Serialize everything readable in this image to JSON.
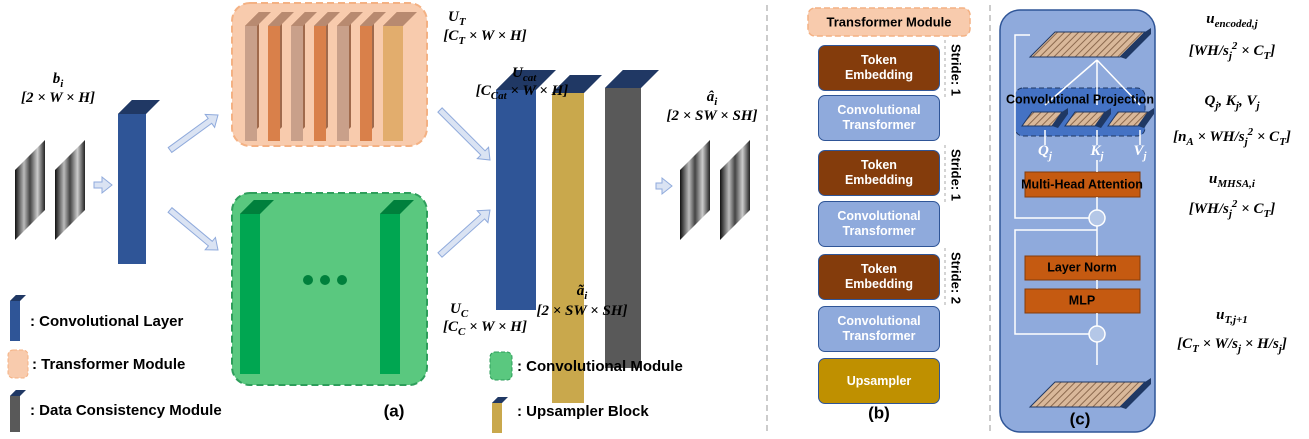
{
  "panel_a": {
    "input": {
      "label": [
        {
          "t": "b"
        },
        {
          "sub": "i"
        }
      ],
      "dims": [
        {
          "t": "[2 × W × H]"
        }
      ]
    },
    "transformer_output": {
      "label": [
        {
          "t": "U"
        },
        {
          "sub": "T"
        }
      ],
      "dims": [
        {
          "t": "[C"
        },
        {
          "sub": "T"
        },
        {
          "t": " × W × H]"
        }
      ]
    },
    "concat": {
      "label": [
        {
          "t": "U"
        },
        {
          "sub": "cat"
        }
      ],
      "dims": [
        {
          "t": "[C"
        },
        {
          "sub": "Cat"
        },
        {
          "t": " × W × H]"
        }
      ]
    },
    "conv_output": {
      "label": [
        {
          "t": "U"
        },
        {
          "sub": "C"
        }
      ],
      "dims": [
        {
          "t": "[C"
        },
        {
          "sub": "C"
        },
        {
          "t": " × W × H]"
        }
      ]
    },
    "upsampled": {
      "label": [
        {
          "t": "ã"
        },
        {
          "sub": "i"
        }
      ],
      "dims": [
        {
          "t": "[2 × SW × SH]"
        }
      ]
    },
    "output": {
      "label": [
        {
          "t": "â"
        },
        {
          "sub": "i"
        }
      ],
      "dims": [
        {
          "t": "[2 × SW × SH]"
        }
      ]
    },
    "legend": [
      ": Convolutional Layer",
      ": Transformer Module",
      ": Data Consistency Module",
      ": Convolutional Module",
      ": Upsampler Block"
    ],
    "caption": "(a)"
  },
  "panel_b": {
    "header": "Transformer Module",
    "blocks": [
      "Token Embedding",
      "Convolutional Transformer",
      "Token Embedding",
      "Convolutional Transformer",
      "Token Embedding",
      "Convolutional Transformer",
      "Upsampler"
    ],
    "strides": [
      "Stride: 1",
      "Stride: 1",
      "Stride: 2"
    ],
    "caption": "(b)"
  },
  "panel_c": {
    "projection": "Convolutional Projection",
    "qkv": [
      [
        {
          "t": "Q"
        },
        {
          "sub": "j"
        }
      ],
      [
        {
          "t": "K"
        },
        {
          "sub": "j"
        }
      ],
      [
        {
          "t": "V"
        },
        {
          "sub": "j"
        }
      ]
    ],
    "attention": "Multi-Head Attention",
    "norm": "Layer Norm",
    "mlp": "MLP",
    "caption": "(c)",
    "annotations": [
      {
        "label": [
          {
            "t": "u"
          },
          {
            "sub": "encoded,j"
          }
        ],
        "dims": [
          {
            "t": "[WH/s"
          },
          {
            "sub": "j"
          },
          {
            "sup": "2"
          },
          {
            "t": " × C"
          },
          {
            "sub": "T"
          },
          {
            "t": "]"
          }
        ]
      },
      {
        "label": [
          {
            "t": "Q"
          },
          {
            "sub": "j"
          },
          {
            "t": ", K"
          },
          {
            "sub": "j"
          },
          {
            "t": ", V"
          },
          {
            "sub": "j"
          }
        ],
        "dims": [
          {
            "t": "[n"
          },
          {
            "sub": "A"
          },
          {
            "t": " × WH/s"
          },
          {
            "sub": "j"
          },
          {
            "sup": "2"
          },
          {
            "t": " × C"
          },
          {
            "sub": "T"
          },
          {
            "t": "]"
          }
        ]
      },
      {
        "label": [
          {
            "t": "u"
          },
          {
            "sub": "MHSA,i"
          }
        ],
        "dims": [
          {
            "t": "[WH/s"
          },
          {
            "sub": "j"
          },
          {
            "sup": "2"
          },
          {
            "t": " × C"
          },
          {
            "sub": "T"
          },
          {
            "t": "]"
          }
        ]
      },
      {
        "label": [
          {
            "t": "u"
          },
          {
            "sub": "T,j+1"
          }
        ],
        "dims": [
          {
            "t": "[C"
          },
          {
            "sub": "T"
          },
          {
            "t": " × W/s"
          },
          {
            "sub": "j"
          },
          {
            "t": " × H/s"
          },
          {
            "sub": "j"
          },
          {
            "t": "]"
          }
        ]
      }
    ]
  }
}
